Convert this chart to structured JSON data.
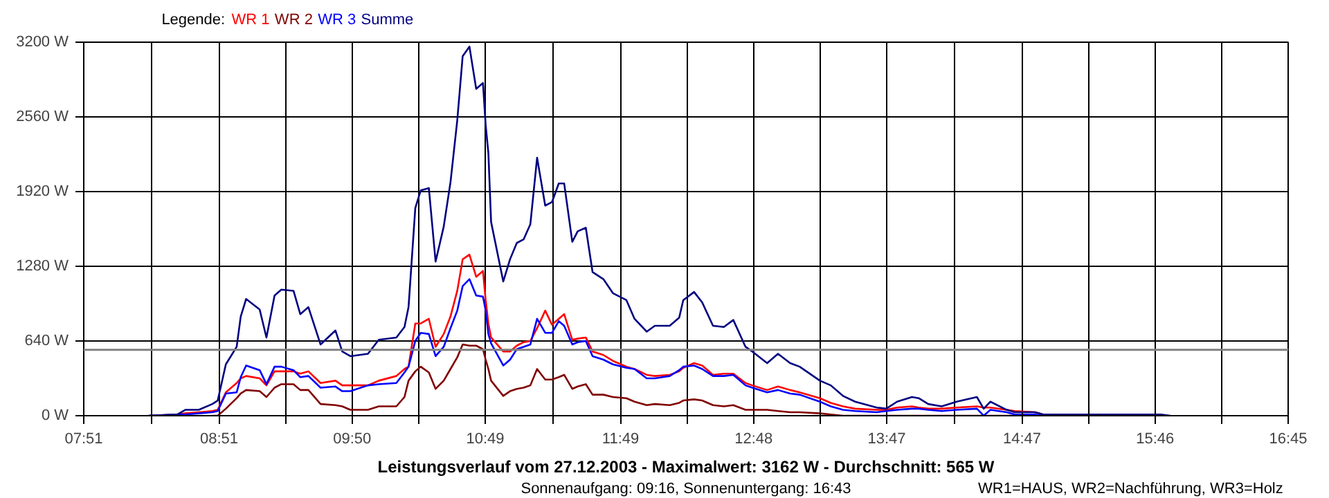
{
  "chart_data": {
    "type": "line",
    "title": "Leistungsverlauf vom 27.12.2003 - Maximalwert: 3162 W - Durchschnitt: 565 W",
    "subtitle": "Sonnenaufgang: 09:16, Sonnenuntergang: 16:43",
    "legend_title": "Legende:",
    "annotations": [
      "WR1=HAUS, WR2=Nachführung, WR3=Holz"
    ],
    "x": [
      8.33,
      8.54,
      8.6,
      8.7,
      8.8,
      8.84,
      8.9,
      8.98,
      9.01,
      9.05,
      9.15,
      9.2,
      9.26,
      9.31,
      9.4,
      9.45,
      9.51,
      9.6,
      9.71,
      9.76,
      9.82,
      9.95,
      10.03,
      10.16,
      10.22,
      10.25,
      10.3,
      10.34,
      10.4,
      10.45,
      10.51,
      10.56,
      10.61,
      10.65,
      10.7,
      10.75,
      10.8,
      10.82,
      10.84,
      10.86,
      10.95,
      11.0,
      11.05,
      11.1,
      11.15,
      11.2,
      11.26,
      11.31,
      11.36,
      11.4,
      11.46,
      11.5,
      11.56,
      11.61,
      11.69,
      11.76,
      11.86,
      11.92,
      12.01,
      12.07,
      12.18,
      12.25,
      12.28,
      12.36,
      12.42,
      12.5,
      12.58,
      12.65,
      12.74,
      12.79,
      12.9,
      12.98,
      13.07,
      13.14,
      13.29,
      13.37,
      13.46,
      13.55,
      13.71,
      13.78,
      13.86,
      13.97,
      14.02,
      14.09,
      14.19,
      14.3,
      14.45,
      14.5,
      14.55,
      14.67,
      14.73,
      14.88,
      14.94,
      15.27,
      15.81,
      15.88
    ],
    "series": [
      {
        "name": "WR 1",
        "color": "#ff0000",
        "x": [
          8.33,
          8.54,
          8.6,
          8.7,
          8.8,
          8.84,
          8.9,
          8.98,
          9.01,
          9.05,
          9.15,
          9.2,
          9.26,
          9.31,
          9.4,
          9.45,
          9.51,
          9.6,
          9.71,
          9.76,
          9.82,
          9.95,
          10.03,
          10.16,
          10.22,
          10.25,
          10.3,
          10.34,
          10.4,
          10.45,
          10.51,
          10.56,
          10.61,
          10.65,
          10.7,
          10.75,
          10.8,
          10.82,
          10.84,
          10.86,
          10.95,
          11.0,
          11.05,
          11.1,
          11.15,
          11.2,
          11.26,
          11.31,
          11.36,
          11.4,
          11.46,
          11.5,
          11.56,
          11.61,
          11.69,
          11.76,
          11.86,
          11.92,
          12.01,
          12.07,
          12.18,
          12.25,
          12.28,
          12.36,
          12.42,
          12.5,
          12.58,
          12.65,
          12.74,
          12.79,
          12.9,
          12.98,
          13.07,
          13.14,
          13.29,
          13.37,
          13.46,
          13.55,
          13.71,
          13.78,
          13.86,
          13.97,
          14.02,
          14.09,
          14.19,
          14.3,
          14.45,
          14.5,
          14.55,
          14.67,
          14.73,
          14.88,
          14.94
        ],
        "values": [
          0,
          10,
          20,
          30,
          40,
          50,
          200,
          280,
          320,
          340,
          320,
          260,
          380,
          380,
          380,
          360,
          380,
          280,
          300,
          260,
          260,
          260,
          300,
          340,
          400,
          420,
          790,
          790,
          830,
          590,
          700,
          850,
          1070,
          1340,
          1380,
          1190,
          1240,
          990,
          790,
          670,
          550,
          550,
          600,
          630,
          640,
          750,
          900,
          780,
          830,
          870,
          650,
          660,
          670,
          550,
          520,
          470,
          420,
          400,
          350,
          340,
          350,
          380,
          410,
          450,
          430,
          350,
          360,
          360,
          280,
          260,
          220,
          250,
          220,
          200,
          150,
          110,
          80,
          60,
          50,
          50,
          70,
          80,
          70,
          60,
          60,
          70,
          80,
          70,
          70,
          50,
          40,
          30,
          10
        ]
      },
      {
        "name": "WR 2",
        "color": "#800000",
        "x": [
          8.8,
          8.84,
          8.9,
          8.98,
          9.01,
          9.05,
          9.15,
          9.2,
          9.26,
          9.31,
          9.4,
          9.45,
          9.51,
          9.6,
          9.71,
          9.76,
          9.82,
          9.95,
          10.03,
          10.16,
          10.22,
          10.25,
          10.3,
          10.34,
          10.4,
          10.45,
          10.51,
          10.56,
          10.61,
          10.65,
          10.7,
          10.75,
          10.8,
          10.82,
          10.84,
          10.86,
          10.95,
          11.0,
          11.05,
          11.1,
          11.15,
          11.2,
          11.26,
          11.31,
          11.36,
          11.4,
          11.46,
          11.5,
          11.56,
          11.61,
          11.69,
          11.76,
          11.86,
          11.92,
          12.01,
          12.07,
          12.18,
          12.25,
          12.28,
          12.36,
          12.42,
          12.5,
          12.58,
          12.65,
          12.74,
          12.79,
          12.9,
          12.98,
          13.07,
          13.14,
          13.29,
          13.37,
          13.46,
          13.55,
          13.71,
          13.78,
          13.86,
          13.97,
          14.02,
          14.09,
          14.19,
          14.3,
          14.45,
          14.5,
          14.55,
          14.67,
          14.73,
          14.88,
          14.94,
          15.27
        ],
        "values": [
          0,
          0,
          60,
          150,
          190,
          220,
          210,
          160,
          240,
          270,
          270,
          220,
          220,
          100,
          90,
          80,
          50,
          50,
          80,
          80,
          160,
          300,
          380,
          420,
          370,
          230,
          300,
          400,
          500,
          610,
          600,
          600,
          570,
          480,
          400,
          300,
          170,
          210,
          230,
          240,
          260,
          400,
          310,
          310,
          330,
          350,
          230,
          250,
          270,
          180,
          180,
          160,
          150,
          120,
          90,
          100,
          90,
          110,
          130,
          140,
          130,
          90,
          80,
          90,
          50,
          50,
          50,
          40,
          30,
          30,
          20,
          10,
          0,
          0,
          0,
          0,
          0,
          0,
          0,
          0,
          0,
          0,
          0,
          0,
          0,
          0,
          0,
          0,
          0,
          0
        ]
      },
      {
        "name": "WR 3",
        "color": "#0000ff",
        "x": [
          8.33,
          8.54,
          8.6,
          8.7,
          8.8,
          8.84,
          8.9,
          8.98,
          9.01,
          9.05,
          9.15,
          9.2,
          9.26,
          9.31,
          9.4,
          9.45,
          9.51,
          9.6,
          9.71,
          9.76,
          9.82,
          9.95,
          10.03,
          10.16,
          10.22,
          10.25,
          10.3,
          10.34,
          10.4,
          10.45,
          10.51,
          10.56,
          10.61,
          10.65,
          10.7,
          10.75,
          10.8,
          10.82,
          10.84,
          10.86,
          10.95,
          11.0,
          11.05,
          11.1,
          11.15,
          11.2,
          11.26,
          11.31,
          11.36,
          11.4,
          11.46,
          11.5,
          11.56,
          11.61,
          11.69,
          11.76,
          11.86,
          11.92,
          12.01,
          12.07,
          12.18,
          12.25,
          12.28,
          12.36,
          12.42,
          12.5,
          12.58,
          12.65,
          12.74,
          12.79,
          12.9,
          12.98,
          13.07,
          13.14,
          13.29,
          13.37,
          13.46,
          13.55,
          13.71,
          13.78,
          13.86,
          13.97,
          14.02,
          14.09,
          14.19,
          14.3,
          14.45,
          14.5,
          14.55,
          14.67,
          14.73,
          14.88,
          14.94,
          15.27
        ],
        "values": [
          0,
          10,
          10,
          20,
          30,
          40,
          190,
          200,
          330,
          430,
          390,
          270,
          420,
          420,
          390,
          330,
          340,
          240,
          250,
          210,
          210,
          260,
          270,
          280,
          370,
          420,
          640,
          710,
          700,
          510,
          590,
          750,
          900,
          1110,
          1170,
          1030,
          1020,
          900,
          700,
          620,
          430,
          480,
          570,
          590,
          610,
          830,
          710,
          710,
          810,
          770,
          610,
          630,
          640,
          510,
          480,
          440,
          410,
          400,
          320,
          320,
          340,
          390,
          420,
          430,
          400,
          340,
          340,
          350,
          260,
          240,
          200,
          220,
          190,
          180,
          120,
          80,
          50,
          40,
          30,
          40,
          50,
          60,
          60,
          50,
          40,
          50,
          60,
          0,
          50,
          30,
          10,
          10,
          0,
          0
        ]
      },
      {
        "name": "Summe",
        "color": "#000080",
        "values": [
          0,
          10,
          50,
          50,
          100,
          130,
          440,
          590,
          850,
          1000,
          910,
          670,
          1030,
          1080,
          1070,
          870,
          930,
          610,
          730,
          550,
          510,
          530,
          650,
          670,
          760,
          930,
          1780,
          1930,
          1950,
          1320,
          1620,
          2000,
          2530,
          3080,
          3162,
          2800,
          2850,
          2490,
          2250,
          1660,
          1150,
          1340,
          1480,
          1510,
          1640,
          2210,
          1800,
          1830,
          1990,
          1990,
          1490,
          1580,
          1610,
          1230,
          1170,
          1050,
          990,
          830,
          720,
          770,
          770,
          840,
          990,
          1060,
          970,
          770,
          760,
          820,
          590,
          550,
          450,
          530,
          450,
          420,
          300,
          260,
          170,
          120,
          70,
          60,
          120,
          160,
          150,
          100,
          80,
          120,
          160,
          60,
          120,
          50,
          30,
          30,
          10,
          10,
          10,
          0
        ]
      }
    ],
    "xlim": [
      7.85,
      16.75
    ],
    "xticks": [
      {
        "value": 7.85,
        "label": "07:51"
      },
      {
        "value": 8.35,
        "label": null
      },
      {
        "value": 8.85,
        "label": "08:51"
      },
      {
        "value": 9.342,
        "label": null
      },
      {
        "value": 9.833,
        "label": "09:50"
      },
      {
        "value": 10.325,
        "label": null
      },
      {
        "value": 10.817,
        "label": "10:49"
      },
      {
        "value": 11.317,
        "label": null
      },
      {
        "value": 11.817,
        "label": "11:49"
      },
      {
        "value": 12.308,
        "label": null
      },
      {
        "value": 12.8,
        "label": "12:48"
      },
      {
        "value": 13.292,
        "label": null
      },
      {
        "value": 13.783,
        "label": "13:47"
      },
      {
        "value": 14.283,
        "label": null
      },
      {
        "value": 14.783,
        "label": "14:47"
      },
      {
        "value": 15.275,
        "label": null
      },
      {
        "value": 15.767,
        "label": "15:46"
      },
      {
        "value": 16.258,
        "label": null
      },
      {
        "value": 16.75,
        "label": "16:45"
      }
    ],
    "ylim": [
      0,
      3200
    ],
    "yticks": [
      {
        "value": 0,
        "label": "0 W"
      },
      {
        "value": 640,
        "label": "640 W"
      },
      {
        "value": 1280,
        "label": "1280 W"
      },
      {
        "value": 1920,
        "label": "1920 W"
      },
      {
        "value": 2560,
        "label": "2560 W"
      },
      {
        "value": 3200,
        "label": "3200 W"
      }
    ],
    "ref_lines": [
      {
        "axis": "y",
        "value": 565,
        "color": "#808080"
      }
    ],
    "grid": true,
    "marker": "none",
    "line_style": "solid"
  }
}
